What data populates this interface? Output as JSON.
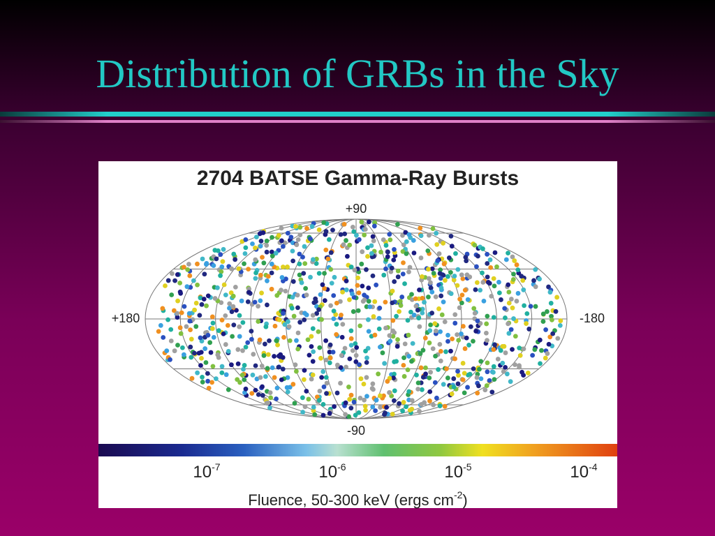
{
  "slide": {
    "title": "Distribution of GRBs in the Sky",
    "figure": {
      "title": "2704 BATSE Gamma-Ray Bursts",
      "labels": {
        "top": "+90",
        "bottom": "-90",
        "left": "+180",
        "right": "-180"
      },
      "colorbar_ticks": [
        {
          "base": "10",
          "exp": "-7"
        },
        {
          "base": "10",
          "exp": "-6"
        },
        {
          "base": "10",
          "exp": "-5"
        },
        {
          "base": "10",
          "exp": "-4"
        }
      ],
      "axis_label": {
        "text": "Fluence, 50-300 keV (ergs cm",
        "exp": "-2",
        "end": ")"
      }
    }
  }
}
